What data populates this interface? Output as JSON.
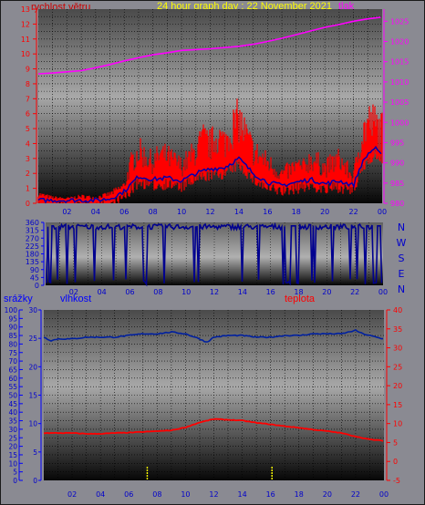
{
  "header": {
    "title": "24 hour graph day : 22 November 2021",
    "wind_label": "rychlost větru",
    "pressure_label": "tlak",
    "rain_label": "srážky",
    "humidity_label": "vlhkost",
    "temperature_label": "teplota"
  },
  "colors": {
    "title": "#ffff00",
    "wind_label": "#cc0000",
    "pressure": "#ff00ff",
    "wind": "#ff0000",
    "wind_avg": "#0000b0",
    "direction": "#000090",
    "axis_blue": "#0000ff",
    "temperature": "#ff0000",
    "humidity": "#0020a0",
    "rain": "#ffff00"
  },
  "chart_data": [
    {
      "type": "line",
      "name": "wind-pressure",
      "x_ticks": [
        "02",
        "04",
        "06",
        "08",
        "10",
        "12",
        "14",
        "16",
        "18",
        "20",
        "22",
        "00"
      ],
      "left_axis": {
        "label": "rychlost větru",
        "min": 0,
        "max": 13,
        "ticks": [
          0,
          1,
          2,
          3,
          4,
          5,
          6,
          7,
          8,
          9,
          10,
          11,
          12,
          13
        ]
      },
      "right_axis": {
        "label": "tlak",
        "min": 980,
        "max": 1028,
        "ticks": [
          980,
          985,
          990,
          995,
          1000,
          1005,
          1010,
          1015,
          1020,
          1025
        ]
      },
      "pressure": [
        [
          0,
          1012
        ],
        [
          1,
          1012.2
        ],
        [
          2,
          1012.5
        ],
        [
          3,
          1012.8
        ],
        [
          4,
          1013.5
        ],
        [
          5,
          1014.3
        ],
        [
          6,
          1015.2
        ],
        [
          7,
          1016
        ],
        [
          8,
          1016.7
        ],
        [
          9,
          1017.2
        ],
        [
          10,
          1017.8
        ],
        [
          11,
          1018
        ],
        [
          12,
          1018.2
        ],
        [
          13,
          1018.5
        ],
        [
          14,
          1018.8
        ],
        [
          15,
          1019.3
        ],
        [
          16,
          1020
        ],
        [
          17,
          1020.8
        ],
        [
          18,
          1021.7
        ],
        [
          19,
          1022.6
        ],
        [
          20,
          1023.5
        ],
        [
          21,
          1024.2
        ],
        [
          22,
          1025
        ],
        [
          23,
          1025.6
        ],
        [
          23.9,
          1026
        ]
      ],
      "wind_gust_envelope": [
        [
          0,
          0.8
        ],
        [
          1,
          0.5
        ],
        [
          2,
          0.4
        ],
        [
          3,
          0.6
        ],
        [
          4,
          0.5
        ],
        [
          5,
          0.8
        ],
        [
          6,
          1.5
        ],
        [
          6.5,
          3.5
        ],
        [
          7,
          4.5
        ],
        [
          7.5,
          4.0
        ],
        [
          8,
          3.5
        ],
        [
          8.5,
          4.2
        ],
        [
          9,
          4.0
        ],
        [
          9.5,
          3.6
        ],
        [
          10,
          3.2
        ],
        [
          10.5,
          3.8
        ],
        [
          11,
          4.5
        ],
        [
          11.5,
          5.5
        ],
        [
          12,
          5.0
        ],
        [
          12.5,
          5.8
        ],
        [
          13,
          5.2
        ],
        [
          13.5,
          6.5
        ],
        [
          14,
          7.2
        ],
        [
          14.5,
          5.8
        ],
        [
          15,
          4.5
        ],
        [
          15.5,
          4.0
        ],
        [
          16,
          3.5
        ],
        [
          16.5,
          3.0
        ],
        [
          17,
          2.5
        ],
        [
          17.5,
          2.8
        ],
        [
          18,
          3.2
        ],
        [
          18.5,
          3.0
        ],
        [
          19,
          3.8
        ],
        [
          19.5,
          3.5
        ],
        [
          20,
          3.0
        ],
        [
          20.5,
          3.4
        ],
        [
          21,
          3.8
        ],
        [
          21.5,
          3.0
        ],
        [
          22,
          2.2
        ],
        [
          22.5,
          5.5
        ],
        [
          23,
          7.0
        ],
        [
          23.5,
          6.8
        ],
        [
          23.9,
          6.2
        ]
      ],
      "wind_average": [
        [
          0,
          0.2
        ],
        [
          2,
          0.2
        ],
        [
          4,
          0.2
        ],
        [
          5,
          0.3
        ],
        [
          6,
          0.8
        ],
        [
          7,
          1.8
        ],
        [
          8,
          1.6
        ],
        [
          9,
          1.7
        ],
        [
          10,
          1.5
        ],
        [
          11,
          2.0
        ],
        [
          12,
          2.3
        ],
        [
          13,
          2.4
        ],
        [
          14,
          3.0
        ],
        [
          15,
          2.0
        ],
        [
          16,
          1.4
        ],
        [
          17,
          1.2
        ],
        [
          18,
          1.4
        ],
        [
          19,
          1.6
        ],
        [
          20,
          1.3
        ],
        [
          21,
          1.5
        ],
        [
          22,
          1.2
        ],
        [
          22.5,
          2.5
        ],
        [
          23,
          3.3
        ],
        [
          23.5,
          3.7
        ],
        [
          23.9,
          3.2
        ]
      ]
    },
    {
      "type": "line",
      "name": "wind-direction",
      "x_ticks": [
        "02",
        "04",
        "06",
        "08",
        "10",
        "12",
        "14",
        "16",
        "18",
        "20",
        "22",
        "00"
      ],
      "left_axis": {
        "min": 0,
        "max": 360,
        "ticks": [
          0,
          45,
          90,
          135,
          180,
          225,
          270,
          315,
          360
        ]
      },
      "right_labels": [
        "N",
        "W",
        "S",
        "E",
        "N"
      ],
      "note": "direction mostly 315-360 (north) with frequent swings down to 0"
    },
    {
      "type": "line",
      "name": "rain-humidity-temperature",
      "x_ticks": [
        "02",
        "04",
        "06",
        "08",
        "10",
        "12",
        "14",
        "16",
        "18",
        "20",
        "22",
        "00"
      ],
      "rain_axis": {
        "label": "srážky",
        "min": 0,
        "max": 100,
        "ticks": [
          0,
          5,
          10,
          15,
          20,
          25,
          30,
          35,
          40,
          45,
          50,
          55,
          60,
          65,
          70,
          75,
          80,
          85,
          90,
          95,
          100
        ]
      },
      "humidity_axis": {
        "label": "vlhkost",
        "min": 0,
        "max": 30,
        "ticks": [
          0,
          5,
          10,
          15,
          20,
          25,
          30
        ]
      },
      "temperature_axis": {
        "label": "teplota",
        "min": -5,
        "max": 40,
        "ticks": [
          -5,
          0,
          5,
          10,
          15,
          20,
          25,
          30,
          35,
          40
        ]
      },
      "humidity": [
        [
          0,
          84
        ],
        [
          0.5,
          82
        ],
        [
          1,
          83
        ],
        [
          2,
          83
        ],
        [
          3,
          84
        ],
        [
          4,
          84
        ],
        [
          5,
          84
        ],
        [
          6,
          85
        ],
        [
          7,
          86
        ],
        [
          8,
          86
        ],
        [
          9,
          87
        ],
        [
          10,
          86
        ],
        [
          11,
          83
        ],
        [
          11.5,
          81
        ],
        [
          12,
          84
        ],
        [
          13,
          85
        ],
        [
          14,
          85
        ],
        [
          15,
          84
        ],
        [
          16,
          84
        ],
        [
          17,
          85
        ],
        [
          18,
          85
        ],
        [
          19,
          86
        ],
        [
          20,
          86
        ],
        [
          21,
          86
        ],
        [
          22,
          88
        ],
        [
          22.5,
          86
        ],
        [
          23,
          85
        ],
        [
          23.9,
          83
        ]
      ],
      "temperature": [
        [
          0,
          7.5
        ],
        [
          1,
          7.5
        ],
        [
          2,
          7.5
        ],
        [
          3,
          7.3
        ],
        [
          4,
          7.3
        ],
        [
          5,
          7.5
        ],
        [
          6,
          7.6
        ],
        [
          7,
          7.8
        ],
        [
          8,
          8.0
        ],
        [
          9,
          8.2
        ],
        [
          10,
          9.0
        ],
        [
          11,
          10.3
        ],
        [
          12,
          11.2
        ],
        [
          13,
          11.0
        ],
        [
          14,
          10.8
        ],
        [
          15,
          10.2
        ],
        [
          16,
          9.8
        ],
        [
          17,
          9.3
        ],
        [
          18,
          8.9
        ],
        [
          19,
          8.4
        ],
        [
          20,
          8.0
        ],
        [
          21,
          7.5
        ],
        [
          22,
          6.6
        ],
        [
          23,
          5.8
        ],
        [
          23.9,
          5.5
        ]
      ],
      "rain_marks": [
        7.3,
        16.1
      ]
    }
  ]
}
